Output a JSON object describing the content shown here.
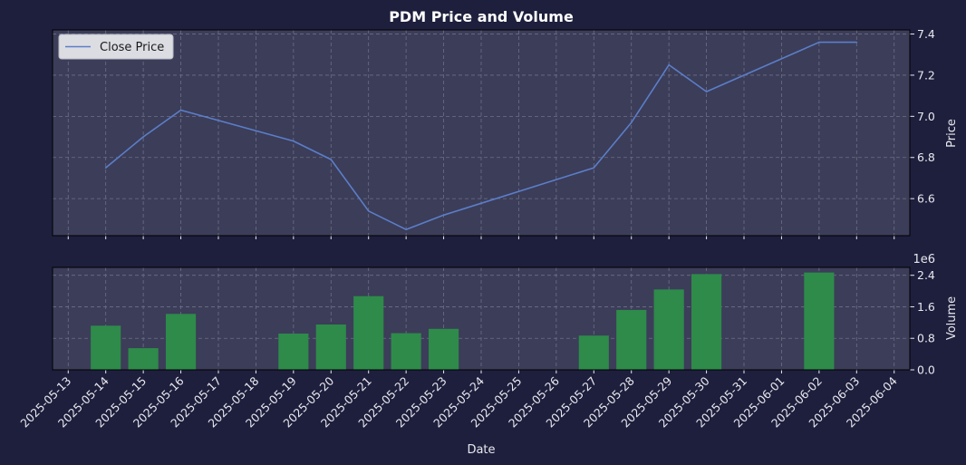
{
  "chart_data": {
    "title": "PDM Price and Volume",
    "xlabel": "Date",
    "dates": [
      "2025-05-13",
      "2025-05-14",
      "2025-05-15",
      "2025-05-16",
      "2025-05-17",
      "2025-05-18",
      "2025-05-19",
      "2025-05-20",
      "2025-05-21",
      "2025-05-22",
      "2025-05-23",
      "2025-05-24",
      "2025-05-25",
      "2025-05-26",
      "2025-05-27",
      "2025-05-28",
      "2025-05-29",
      "2025-05-30",
      "2025-05-31",
      "2025-06-01",
      "2025-06-02",
      "2025-06-03",
      "2025-06-04"
    ],
    "xlim": [
      "2025-05-12T14:00",
      "2025-06-04T10:00"
    ],
    "price": {
      "type": "line",
      "ylabel": "Price",
      "ylim": [
        6.42,
        7.42
      ],
      "yticks": [
        6.6,
        6.8,
        7.0,
        7.2,
        7.4
      ],
      "ytick_labels": [
        "6.6",
        "6.8",
        "7.0",
        "7.2",
        "7.4"
      ],
      "legend": "top-left",
      "series": [
        {
          "name": "Close Price",
          "color": "#5b7ec9",
          "points": [
            {
              "x": "2025-05-14",
              "y": 6.75
            },
            {
              "x": "2025-05-15",
              "y": 6.9
            },
            {
              "x": "2025-05-16",
              "y": 7.03
            },
            {
              "x": "2025-05-19",
              "y": 6.88
            },
            {
              "x": "2025-05-20",
              "y": 6.79
            },
            {
              "x": "2025-05-21",
              "y": 6.54
            },
            {
              "x": "2025-05-22",
              "y": 6.45
            },
            {
              "x": "2025-05-23",
              "y": 6.52
            },
            {
              "x": "2025-05-27",
              "y": 6.75
            },
            {
              "x": "2025-05-28",
              "y": 6.97
            },
            {
              "x": "2025-05-29",
              "y": 7.25
            },
            {
              "x": "2025-05-30",
              "y": 7.12
            },
            {
              "x": "2025-06-02",
              "y": 7.36
            },
            {
              "x": "2025-06-03",
              "y": 7.36
            }
          ]
        }
      ]
    },
    "volume": {
      "type": "bar",
      "ylabel": "Volume",
      "scale_label": "1e6",
      "ylim": [
        0,
        2.6
      ],
      "yticks": [
        0,
        0.8,
        1.6,
        2.4
      ],
      "ytick_labels": [
        "0.0",
        "0.8",
        "1.6",
        "2.4"
      ],
      "color": "#2e8b4a",
      "bars": [
        {
          "x": "2025-05-14",
          "value": 1.12
        },
        {
          "x": "2025-05-15",
          "value": 0.55
        },
        {
          "x": "2025-05-16",
          "value": 1.42
        },
        {
          "x": "2025-05-19",
          "value": 0.92
        },
        {
          "x": "2025-05-20",
          "value": 1.15
        },
        {
          "x": "2025-05-21",
          "value": 1.87
        },
        {
          "x": "2025-05-22",
          "value": 0.93
        },
        {
          "x": "2025-05-23",
          "value": 1.04
        },
        {
          "x": "2025-05-27",
          "value": 0.87
        },
        {
          "x": "2025-05-28",
          "value": 1.52
        },
        {
          "x": "2025-05-29",
          "value": 2.04
        },
        {
          "x": "2025-05-30",
          "value": 2.43
        },
        {
          "x": "2025-06-02",
          "value": 2.47
        }
      ]
    },
    "grid": true,
    "colors": {
      "figure_bg": "#1e1f3d",
      "axes_bg": "#3c3d59",
      "grid": "#6e6f85",
      "text": "#e8e8ee"
    }
  }
}
